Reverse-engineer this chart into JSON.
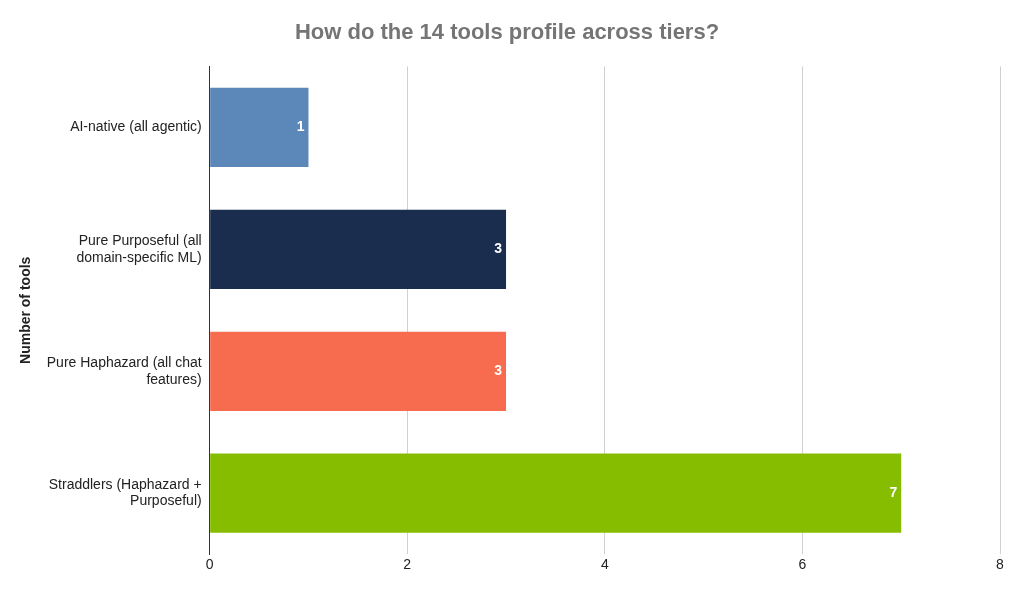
{
  "chart_data": {
    "type": "bar",
    "orientation": "horizontal",
    "title": "How do the 14 tools profile across tiers?",
    "ylabel": "Number of tools",
    "categories": [
      "AI-native (all agentic)",
      "Pure Purposeful (all domain-specific ML)",
      "Pure Haphazard (all chat features)",
      "Straddlers (Haphazard + Purposeful)"
    ],
    "values": [
      1,
      3,
      3,
      7
    ],
    "colors": [
      "#5b87b9",
      "#1b2d4f",
      "#f76b4f",
      "#86bd00"
    ],
    "xlim": [
      0,
      8
    ],
    "xticks": [
      0,
      2,
      4,
      6,
      8
    ],
    "grid": "x",
    "legend": false,
    "data_labels": true
  }
}
